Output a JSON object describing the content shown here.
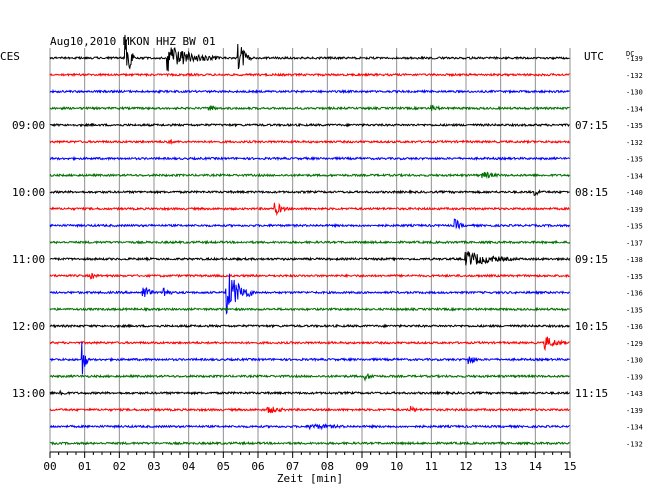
{
  "chart_data": {
    "type": "line",
    "title": "Aug10,2010   MKON HHZ BW 01",
    "left_label": "CES",
    "right_label": "UTC",
    "dc_label": "DC",
    "xlabel": "Zeit [min]",
    "xlim": [
      0,
      15
    ],
    "x_ticks": [
      "00",
      "01",
      "02",
      "03",
      "04",
      "05",
      "06",
      "07",
      "08",
      "09",
      "10",
      "11",
      "12",
      "13",
      "14",
      "15"
    ],
    "grid": true,
    "trace_colors": [
      "#000000",
      "#ff0000",
      "#0000ff",
      "#007000"
    ],
    "left_time_labels": [
      {
        "trace": 4,
        "text": "09:00"
      },
      {
        "trace": 8,
        "text": "10:00"
      },
      {
        "trace": 12,
        "text": "11:00"
      },
      {
        "trace": 16,
        "text": "12:00"
      },
      {
        "trace": 20,
        "text": "13:00"
      }
    ],
    "right_time_labels": [
      {
        "trace": 4,
        "text": "07:15"
      },
      {
        "trace": 8,
        "text": "08:15"
      },
      {
        "trace": 12,
        "text": "09:15"
      },
      {
        "trace": 16,
        "text": "10:15"
      },
      {
        "trace": 20,
        "text": "11:15"
      }
    ],
    "dc_values": [
      "-139",
      "-132",
      "-130",
      "-134",
      "-135",
      "-132",
      "-135",
      "-134",
      "-140",
      "-139",
      "-135",
      "-137",
      "-138",
      "-135",
      "-136",
      "-135",
      "-136",
      "-129",
      "-130",
      "-139",
      "-143",
      "-139",
      "-134",
      "-132"
    ],
    "events": [
      {
        "trace": 0,
        "minute": 2.2,
        "amplitude": 26,
        "duration": 0.25
      },
      {
        "trace": 0,
        "minute": 3.4,
        "amplitude": 14,
        "duration": 1.5
      },
      {
        "trace": 0,
        "minute": 5.45,
        "amplitude": 18,
        "duration": 0.35
      },
      {
        "trace": 3,
        "minute": 4.6,
        "amplitude": 4,
        "duration": 0.4
      },
      {
        "trace": 3,
        "minute": 11.0,
        "amplitude": 4,
        "duration": 0.5
      },
      {
        "trace": 5,
        "minute": 3.4,
        "amplitude": 3,
        "duration": 0.5
      },
      {
        "trace": 7,
        "minute": 12.5,
        "amplitude": 4,
        "duration": 0.9
      },
      {
        "trace": 8,
        "minute": 14.0,
        "amplitude": 4,
        "duration": 0.4
      },
      {
        "trace": 9,
        "minute": 6.5,
        "amplitude": 7,
        "duration": 0.5
      },
      {
        "trace": 10,
        "minute": 11.7,
        "amplitude": 7,
        "duration": 0.3
      },
      {
        "trace": 13,
        "minute": 1.2,
        "amplitude": 4,
        "duration": 0.3
      },
      {
        "trace": 12,
        "minute": 12.0,
        "amplitude": 9,
        "duration": 1.6
      },
      {
        "trace": 14,
        "minute": 2.7,
        "amplitude": 9,
        "duration": 0.35
      },
      {
        "trace": 14,
        "minute": 3.3,
        "amplitude": 7,
        "duration": 0.3
      },
      {
        "trace": 14,
        "minute": 5.1,
        "amplitude": 24,
        "duration": 0.8
      },
      {
        "trace": 17,
        "minute": 14.3,
        "amplitude": 7,
        "duration": 0.8
      },
      {
        "trace": 18,
        "minute": 0.95,
        "amplitude": 22,
        "duration": 0.15
      },
      {
        "trace": 18,
        "minute": 12.1,
        "amplitude": 6,
        "duration": 0.35
      },
      {
        "trace": 19,
        "minute": 9.1,
        "amplitude": 4,
        "duration": 0.6
      },
      {
        "trace": 20,
        "minute": 0.3,
        "amplitude": 5,
        "duration": 0.3
      },
      {
        "trace": 21,
        "minute": 6.3,
        "amplitude": 4,
        "duration": 1.0
      },
      {
        "trace": 21,
        "minute": 10.4,
        "amplitude": 4,
        "duration": 0.4
      },
      {
        "trace": 22,
        "minute": 7.5,
        "amplitude": 3,
        "duration": 2.5
      }
    ]
  }
}
